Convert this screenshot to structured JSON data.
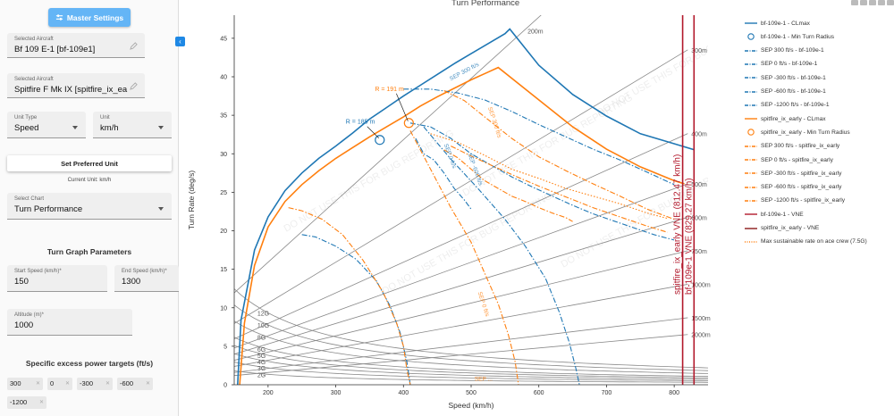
{
  "sidebar": {
    "master_settings": "Master Settings",
    "aircraft1": {
      "label": "Selected Aircraft",
      "value": "Bf 109 E-1 [bf-109e1]"
    },
    "aircraft2": {
      "label": "Selected Aircraft",
      "value": "Spitfire F Mk IX [spitfire_ix_ea"
    },
    "unit_type": {
      "label": "Unit Type",
      "value": "Speed"
    },
    "unit": {
      "label": "Unit",
      "value": "km/h"
    },
    "set_preferred": "Set Preferred Unit",
    "current_unit": "Current Unit: km/h",
    "chart_select": {
      "label": "Select Chart",
      "value": "Turn Performance"
    },
    "turn_params_title": "Turn Graph Parameters",
    "start_speed": {
      "label": "Start Speed (km/h)*",
      "value": "150"
    },
    "end_speed": {
      "label": "End Speed (km/h)*",
      "value": "1300"
    },
    "altitude": {
      "label": "Altitude (m)*",
      "value": "1000"
    },
    "sep_title": "Specific excess power targets (ft/s)",
    "sep_chips": [
      "300",
      "0",
      "-300",
      "-600",
      "-1200"
    ]
  },
  "chart_data": {
    "type": "line",
    "title": "Turn Performance",
    "xlabel": "Speed (km/h)",
    "ylabel": "Turn Rate (deg/s)",
    "xlim": [
      150,
      850
    ],
    "ylim": [
      0,
      48
    ],
    "xticks": [
      200,
      300,
      400,
      500,
      600,
      700,
      800
    ],
    "yticks": [
      0,
      5,
      10,
      15,
      20,
      25,
      30,
      35,
      40,
      45
    ],
    "grid": true,
    "legend_position": "right",
    "watermark": "DO NOT USE THIS FOR BUG REPORTING",
    "colors": {
      "blue": "#1f77b4",
      "orange": "#ff7f0e",
      "red": "#b2182b",
      "grid": "#888888"
    },
    "g_lines": [
      {
        "label": "2G",
        "g": 2
      },
      {
        "label": "3G",
        "g": 3
      },
      {
        "label": "4G",
        "g": 4
      },
      {
        "label": "5G",
        "g": 5
      },
      {
        "label": "6G",
        "g": 6
      },
      {
        "label": "8G",
        "g": 8
      },
      {
        "label": "10G",
        "g": 10
      },
      {
        "label": "12G",
        "g": 12
      }
    ],
    "radius_lines": [
      {
        "label": "200m",
        "r": 200
      },
      {
        "label": "300m",
        "r": 300
      },
      {
        "label": "400m",
        "r": 400
      },
      {
        "label": "500m",
        "r": 500
      },
      {
        "label": "600m",
        "r": 600
      },
      {
        "label": "750m",
        "r": 750
      },
      {
        "label": "1000m",
        "r": 1000
      },
      {
        "label": "1500m",
        "r": 1500
      },
      {
        "label": "2000m",
        "r": 2000
      }
    ],
    "series": [
      {
        "name": "bf-109e-1 - CLmax",
        "color": "blue",
        "dash": "solid",
        "x": [
          155,
          160,
          180,
          200,
          225,
          250,
          275,
          300,
          325,
          350,
          375,
          400,
          425,
          450,
          475,
          500,
          525,
          550,
          557,
          600,
          650,
          700,
          750,
          800,
          830
        ],
        "y": [
          0,
          8.4,
          17.5,
          21.8,
          25.2,
          27.5,
          29.4,
          31.0,
          32.7,
          34.5,
          36.0,
          37.5,
          38.9,
          40.3,
          41.7,
          43.0,
          44.3,
          45.6,
          46.2,
          41.5,
          37.7,
          34.9,
          32.6,
          31.3,
          30.5
        ]
      },
      {
        "name": "spitfire_ix_early - CLmax",
        "color": "orange",
        "dash": "solid",
        "x": [
          158,
          165,
          180,
          200,
          225,
          250,
          275,
          300,
          325,
          350,
          375,
          400,
          425,
          450,
          475,
          500,
          525,
          540,
          600,
          650,
          700,
          750,
          800,
          815
        ],
        "y": [
          0,
          8.0,
          15.5,
          20.5,
          23.8,
          26.0,
          27.8,
          29.4,
          30.8,
          32.2,
          33.5,
          34.8,
          36.2,
          37.4,
          38.5,
          39.6,
          40.6,
          41.2,
          37.0,
          33.5,
          30.6,
          28.3,
          26.5,
          26.1
        ]
      },
      {
        "name": "SEP 300 ft/s - bf-109e-1",
        "color": "blue",
        "dash": "dashdot",
        "x": [
          400,
          440,
          480,
          520,
          560,
          600,
          640,
          680,
          720,
          760,
          800
        ],
        "y": [
          38.4,
          38.4,
          37.9,
          37.0,
          35.5,
          33.8,
          32.2,
          30.6,
          29.2,
          27.6,
          26.0
        ]
      },
      {
        "name": "SEP 0 ft/s - bf-109e-1",
        "color": "blue",
        "dash": "dashdot",
        "x": [
          410,
          440,
          470,
          500,
          530,
          560,
          590,
          620,
          650,
          680,
          710,
          740,
          770,
          800
        ],
        "y": [
          34.0,
          33.5,
          32.0,
          30.0,
          28.5,
          27.0,
          25.7,
          24.5,
          23.3,
          22.2,
          21.3,
          20.4,
          19.5,
          18.8
        ]
      },
      {
        "name": "SEP -300 ft/s - bf-109e-1",
        "color": "blue",
        "dash": "dashdot",
        "x": [
          418,
          430,
          445,
          460,
          475,
          490,
          500
        ],
        "y": [
          32.0,
          30.0,
          29.2,
          27.5,
          25.5,
          24.0,
          22.8
        ]
      },
      {
        "name": "SEP -600 ft/s - bf-109e-1",
        "color": "blue",
        "dash": "dashdot",
        "x": [
          430,
          470,
          510,
          550,
          580,
          610,
          630,
          645,
          655,
          660
        ],
        "y": [
          33.5,
          29.3,
          25.5,
          21.5,
          18.0,
          13.8,
          9.5,
          5.5,
          2.0,
          0
        ]
      },
      {
        "name": "SEP -1200 ft/s - bf-109e-1",
        "color": "blue",
        "dash": "dashdot",
        "x": [
          250,
          270,
          300,
          330,
          360,
          380,
          395,
          405,
          410
        ],
        "y": [
          19.5,
          19.2,
          18.0,
          16.3,
          13.5,
          10.3,
          6.8,
          3.0,
          0
        ]
      },
      {
        "name": "SEP 300 ft/s - spitfire_ix_early",
        "color": "orange",
        "dash": "dashdot",
        "x": [
          460,
          490,
          520,
          560,
          600,
          640,
          680,
          720,
          760,
          800
        ],
        "y": [
          38.2,
          36.9,
          34.8,
          32.0,
          29.6,
          27.8,
          26.1,
          24.5,
          22.8,
          21.5
        ]
      },
      {
        "name": "SEP 0 ft/s - spitfire_ix_early",
        "color": "orange",
        "dash": "dashdot",
        "x": [
          470,
          500,
          530,
          560,
          600,
          640,
          680,
          720,
          760,
          790
        ],
        "y": [
          31.0,
          29.7,
          28.5,
          27.3,
          25.8,
          24.4,
          23.0,
          21.8,
          20.6,
          19.8
        ]
      },
      {
        "name": "SEP -300 ft/s - spitfire_ix_early",
        "color": "orange",
        "dash": "dashdot",
        "x": [
          460,
          480,
          500,
          520,
          540,
          560,
          580,
          600,
          620,
          640,
          650
        ],
        "y": [
          30.5,
          29.5,
          28.0,
          26.5,
          25.5,
          24.5,
          23.8,
          23.0,
          22.3,
          21.7,
          21.2
        ]
      },
      {
        "name": "SEP -600 ft/s - spitfire_ix_early",
        "color": "orange",
        "dash": "dashdot",
        "x": [
          410,
          440,
          470,
          500,
          520,
          540,
          555,
          565,
          570
        ],
        "y": [
          33.0,
          28.0,
          23.0,
          18.5,
          14.5,
          10.5,
          6.5,
          3.0,
          0
        ]
      },
      {
        "name": "SEP -1200 ft/s - spitfire_ix_early",
        "color": "orange",
        "dash": "dashdot",
        "x": [
          230,
          250,
          280,
          310,
          340,
          370,
          390,
          400,
          405,
          410
        ],
        "y": [
          23.0,
          22.6,
          21.5,
          19.5,
          16.2,
          12.0,
          8.0,
          5.0,
          2.0,
          0
        ]
      },
      {
        "name": "Max sustainable rate on ace crew (7.5G)",
        "color": "orange",
        "dash": "dotted",
        "x": [
          440,
          480,
          520,
          560,
          600,
          640,
          680,
          720,
          760,
          790
        ],
        "y": [
          32.6,
          31.5,
          29.8,
          28.0,
          26.8,
          25.5,
          24.5,
          23.5,
          22.3,
          21.6
        ]
      }
    ],
    "vne": [
      {
        "name": "spitfire_ix_early - VNE",
        "label": "spitfire_ix_early VNE (812.47 km/h)",
        "x": 812.47,
        "color": "red"
      },
      {
        "name": "bf-109e-1 - VNE",
        "label": "bf-109e-1 VNE (829.27 km/h)",
        "x": 829.27,
        "color": "red"
      }
    ],
    "min_turn_radius": [
      {
        "name": "bf-109e-1 - Min Turn Radius",
        "label": "R = 185 m",
        "x": 365,
        "y": 31.8,
        "color": "blue"
      },
      {
        "name": "spitfire_ix_early - Min Turn Radius",
        "label": "R = 191 m",
        "x": 408,
        "y": 34.0,
        "color": "orange"
      }
    ],
    "sep_labels": [
      {
        "text": "SEP 300 ft/s",
        "x": 470,
        "y": 39.5,
        "color": "blue",
        "angle": -28
      },
      {
        "text": "SEP 300 ft/s",
        "x": 525,
        "y": 36.0,
        "color": "orange",
        "angle": 72
      },
      {
        "text": "SEP 0 ft/s",
        "x": 460,
        "y": 31.2,
        "color": "blue",
        "angle": 70
      },
      {
        "text": "SEP -600 ft/s",
        "x": 495,
        "y": 30.0,
        "color": "blue",
        "angle": 70
      },
      {
        "text": "SEP 0 ft/s",
        "x": 510,
        "y": 12.0,
        "color": "orange",
        "angle": 72
      },
      {
        "text": "SEP ...",
        "x": 505,
        "y": 0.5,
        "color": "orange",
        "angle": 0
      }
    ]
  },
  "legend": [
    {
      "label": "bf-109e-1 - CLmax",
      "color": "#1f77b4",
      "kind": "solid"
    },
    {
      "label": "bf-109e-1 - Min Turn Radius",
      "color": "#1f77b4",
      "kind": "circle"
    },
    {
      "label": "SEP 300 ft/s - bf-109e-1",
      "color": "#1f77b4",
      "kind": "dashdot"
    },
    {
      "label": "SEP 0 ft/s - bf-109e-1",
      "color": "#1f77b4",
      "kind": "dashdot"
    },
    {
      "label": "SEP -300 ft/s - bf-109e-1",
      "color": "#1f77b4",
      "kind": "dashdot"
    },
    {
      "label": "SEP -600 ft/s - bf-109e-1",
      "color": "#1f77b4",
      "kind": "dashdot"
    },
    {
      "label": "SEP -1200 ft/s - bf-109e-1",
      "color": "#1f77b4",
      "kind": "dashdot"
    },
    {
      "label": "spitfire_ix_early - CLmax",
      "color": "#ff7f0e",
      "kind": "solid"
    },
    {
      "label": "spitfire_ix_early - Min Turn Radius",
      "color": "#ff7f0e",
      "kind": "circle"
    },
    {
      "label": "SEP 300 ft/s - spitfire_ix_early",
      "color": "#ff7f0e",
      "kind": "dashdot"
    },
    {
      "label": "SEP 0 ft/s - spitfire_ix_early",
      "color": "#ff7f0e",
      "kind": "dashdot"
    },
    {
      "label": "SEP -300 ft/s - spitfire_ix_early",
      "color": "#ff7f0e",
      "kind": "dashdot"
    },
    {
      "label": "SEP -600 ft/s - spitfire_ix_early",
      "color": "#ff7f0e",
      "kind": "dashdot"
    },
    {
      "label": "SEP -1200 ft/s - spitfire_ix_early",
      "color": "#ff7f0e",
      "kind": "dashdot"
    },
    {
      "label": "bf-109e-1 - VNE",
      "color": "#b2182b",
      "kind": "solid"
    },
    {
      "label": "spitfire_ix_early - VNE",
      "color": "#8b1a1a",
      "kind": "solid"
    },
    {
      "label": "Max sustainable rate on ace crew (7.5G)",
      "color": "#ff7f0e",
      "kind": "dotted"
    }
  ]
}
